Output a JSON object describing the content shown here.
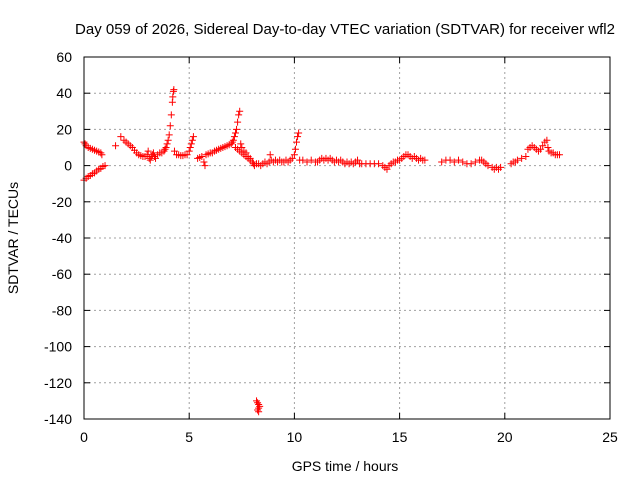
{
  "chart_data": {
    "type": "scatter",
    "title": "Day 059 of 2026, Sidereal Day-to-day VTEC variation (SDTVAR) for receiver wfl2",
    "xlabel": "GPS time / hours",
    "ylabel": "SDTVAR / TECUs",
    "xlim": [
      0,
      25
    ],
    "ylim": [
      -140,
      60
    ],
    "xticks": [
      0,
      5,
      10,
      15,
      20,
      25
    ],
    "yticks": [
      60,
      40,
      20,
      0,
      -20,
      -40,
      -60,
      -80,
      -100,
      -120,
      -140
    ],
    "grid": true,
    "marker": "plus",
    "color": "#ff0000",
    "series": [
      {
        "points": [
          [
            0.0,
            -8
          ],
          [
            0.1,
            -7
          ],
          [
            0.2,
            -6
          ],
          [
            0.3,
            -5.5
          ],
          [
            0.4,
            -4.5
          ],
          [
            0.5,
            -4
          ],
          [
            0.6,
            -3
          ],
          [
            0.7,
            -2
          ],
          [
            0.8,
            -1.5
          ],
          [
            0.9,
            -0.5
          ],
          [
            1.0,
            0
          ],
          [
            0.0,
            13
          ],
          [
            0.05,
            12
          ],
          [
            0.1,
            11
          ],
          [
            0.2,
            10
          ],
          [
            0.3,
            9.5
          ],
          [
            0.4,
            9
          ],
          [
            0.5,
            8.5
          ],
          [
            0.6,
            8
          ],
          [
            0.7,
            7.5
          ],
          [
            0.8,
            7
          ],
          [
            0.85,
            6
          ],
          [
            1.5,
            11
          ],
          [
            1.75,
            16
          ],
          [
            1.9,
            14
          ],
          [
            2.0,
            13
          ],
          [
            2.1,
            12
          ],
          [
            2.2,
            11
          ],
          [
            2.3,
            10
          ],
          [
            2.4,
            8.5
          ],
          [
            2.5,
            7
          ],
          [
            2.6,
            6
          ],
          [
            2.7,
            5.5
          ],
          [
            2.8,
            5
          ],
          [
            2.9,
            5
          ],
          [
            3.0,
            6
          ],
          [
            3.05,
            8
          ],
          [
            3.1,
            4
          ],
          [
            3.15,
            3
          ],
          [
            3.2,
            5
          ],
          [
            3.25,
            6
          ],
          [
            3.3,
            7
          ],
          [
            3.35,
            5
          ],
          [
            3.4,
            4
          ],
          [
            3.5,
            6
          ],
          [
            3.6,
            7
          ],
          [
            3.7,
            7
          ],
          [
            3.8,
            8
          ],
          [
            3.85,
            9
          ],
          [
            3.9,
            10
          ],
          [
            3.95,
            12
          ],
          [
            4.0,
            14
          ],
          [
            4.05,
            17
          ],
          [
            4.1,
            22
          ],
          [
            4.15,
            28
          ],
          [
            4.2,
            35
          ],
          [
            4.22,
            38
          ],
          [
            4.25,
            41
          ],
          [
            4.27,
            42
          ],
          [
            4.3,
            8
          ],
          [
            4.4,
            6
          ],
          [
            4.5,
            6
          ],
          [
            4.6,
            5.5
          ],
          [
            4.7,
            5.5
          ],
          [
            4.8,
            6
          ],
          [
            4.9,
            6
          ],
          [
            5.0,
            8
          ],
          [
            5.05,
            10
          ],
          [
            5.1,
            12
          ],
          [
            5.15,
            14
          ],
          [
            5.2,
            16
          ],
          [
            5.4,
            4
          ],
          [
            5.5,
            4.5
          ],
          [
            5.6,
            5
          ],
          [
            5.7,
            2
          ],
          [
            5.75,
            0
          ],
          [
            5.8,
            6
          ],
          [
            5.9,
            6.5
          ],
          [
            6.0,
            7
          ],
          [
            6.1,
            7
          ],
          [
            6.2,
            8
          ],
          [
            6.3,
            8.5
          ],
          [
            6.4,
            9
          ],
          [
            6.5,
            9.5
          ],
          [
            6.6,
            10
          ],
          [
            6.7,
            10.5
          ],
          [
            6.8,
            11
          ],
          [
            6.9,
            11.5
          ],
          [
            7.0,
            12
          ],
          [
            7.05,
            13
          ],
          [
            7.1,
            14
          ],
          [
            7.15,
            16
          ],
          [
            7.2,
            18
          ],
          [
            7.25,
            20
          ],
          [
            7.3,
            24
          ],
          [
            7.35,
            28
          ],
          [
            7.4,
            30
          ],
          [
            7.45,
            12
          ],
          [
            7.5,
            10
          ],
          [
            7.6,
            8
          ],
          [
            7.7,
            7
          ],
          [
            7.8,
            5
          ],
          [
            7.9,
            4
          ],
          [
            7.2,
            10
          ],
          [
            7.3,
            9
          ],
          [
            7.4,
            8
          ],
          [
            7.5,
            7
          ],
          [
            7.6,
            6
          ],
          [
            7.7,
            5
          ],
          [
            7.8,
            4
          ],
          [
            7.9,
            3
          ],
          [
            8.0,
            2
          ],
          [
            8.05,
            1
          ],
          [
            8.1,
            0
          ],
          [
            8.2,
            1
          ],
          [
            8.3,
            1
          ],
          [
            8.4,
            0
          ],
          [
            8.5,
            1
          ],
          [
            8.6,
            2
          ],
          [
            8.7,
            1
          ],
          [
            8.8,
            2
          ],
          [
            8.85,
            6
          ],
          [
            8.9,
            3
          ],
          [
            9.0,
            2
          ],
          [
            9.1,
            3
          ],
          [
            9.2,
            2
          ],
          [
            9.3,
            3
          ],
          [
            9.4,
            2
          ],
          [
            9.5,
            2
          ],
          [
            9.6,
            3
          ],
          [
            9.7,
            2
          ],
          [
            9.8,
            3
          ],
          [
            9.9,
            4
          ],
          [
            10.0,
            6
          ],
          [
            10.05,
            9
          ],
          [
            10.1,
            13
          ],
          [
            10.15,
            16
          ],
          [
            10.2,
            18
          ],
          [
            10.25,
            3
          ],
          [
            10.4,
            3
          ],
          [
            10.6,
            2
          ],
          [
            10.8,
            3
          ],
          [
            11.0,
            2
          ],
          [
            11.1,
            2
          ],
          [
            11.2,
            3
          ],
          [
            11.3,
            4
          ],
          [
            11.4,
            3
          ],
          [
            11.5,
            4
          ],
          [
            11.6,
            3
          ],
          [
            11.7,
            4
          ],
          [
            11.8,
            3
          ],
          [
            11.9,
            2
          ],
          [
            12.0,
            3
          ],
          [
            12.1,
            2
          ],
          [
            12.2,
            3
          ],
          [
            12.3,
            2
          ],
          [
            12.4,
            1
          ],
          [
            12.5,
            2
          ],
          [
            12.6,
            1
          ],
          [
            12.7,
            2
          ],
          [
            12.8,
            1
          ],
          [
            12.9,
            2
          ],
          [
            13.0,
            3
          ],
          [
            13.1,
            1
          ],
          [
            13.2,
            1
          ],
          [
            13.4,
            1
          ],
          [
            13.6,
            1
          ],
          [
            13.8,
            1
          ],
          [
            14.0,
            1
          ],
          [
            14.2,
            0
          ],
          [
            14.3,
            -1
          ],
          [
            14.4,
            -2
          ],
          [
            14.5,
            0
          ],
          [
            14.6,
            1
          ],
          [
            14.7,
            2
          ],
          [
            14.8,
            2
          ],
          [
            14.9,
            3
          ],
          [
            15.0,
            3
          ],
          [
            15.1,
            4
          ],
          [
            15.2,
            5
          ],
          [
            15.3,
            6
          ],
          [
            15.4,
            6
          ],
          [
            15.5,
            5
          ],
          [
            15.6,
            4
          ],
          [
            15.7,
            5
          ],
          [
            15.8,
            4
          ],
          [
            15.9,
            3
          ],
          [
            16.0,
            4
          ],
          [
            16.1,
            3
          ],
          [
            16.2,
            3
          ],
          [
            17.0,
            2
          ],
          [
            17.2,
            3
          ],
          [
            17.4,
            3
          ],
          [
            17.6,
            2
          ],
          [
            17.8,
            3
          ],
          [
            18.0,
            2
          ],
          [
            18.2,
            1
          ],
          [
            18.4,
            1
          ],
          [
            18.6,
            2
          ],
          [
            18.8,
            3
          ],
          [
            18.9,
            3
          ],
          [
            19.0,
            2
          ],
          [
            19.1,
            1
          ],
          [
            19.2,
            0
          ],
          [
            19.4,
            -1
          ],
          [
            19.5,
            -2
          ],
          [
            19.6,
            -1
          ],
          [
            19.7,
            -2
          ],
          [
            19.8,
            -1
          ],
          [
            20.3,
            1
          ],
          [
            20.4,
            2
          ],
          [
            20.5,
            2
          ],
          [
            20.6,
            3
          ],
          [
            20.8,
            4
          ],
          [
            21.0,
            5
          ],
          [
            21.1,
            9
          ],
          [
            21.2,
            10
          ],
          [
            21.3,
            11
          ],
          [
            21.4,
            10
          ],
          [
            21.5,
            9
          ],
          [
            21.6,
            8
          ],
          [
            21.7,
            9
          ],
          [
            21.8,
            11
          ],
          [
            21.9,
            13
          ],
          [
            22.0,
            14
          ],
          [
            22.05,
            10
          ],
          [
            22.1,
            8
          ],
          [
            22.2,
            7
          ],
          [
            22.3,
            7
          ],
          [
            22.4,
            6
          ],
          [
            22.5,
            6
          ],
          [
            22.6,
            6
          ],
          [
            8.2,
            -130
          ],
          [
            8.25,
            -131
          ],
          [
            8.3,
            -132
          ],
          [
            8.3,
            -134
          ],
          [
            8.25,
            -135
          ],
          [
            8.3,
            -136
          ],
          [
            8.35,
            -133
          ]
        ]
      }
    ]
  }
}
